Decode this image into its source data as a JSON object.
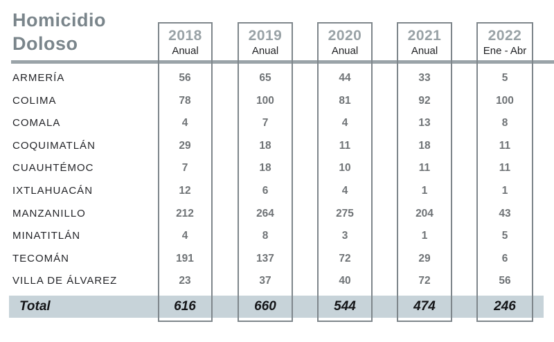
{
  "title": {
    "line1": "Homicidio",
    "line2": "Doloso"
  },
  "columns": [
    {
      "year": "2018",
      "period": "Anual"
    },
    {
      "year": "2019",
      "period": "Anual"
    },
    {
      "year": "2020",
      "period": "Anual"
    },
    {
      "year": "2021",
      "period": "Anual"
    },
    {
      "year": "2022",
      "period": "Ene - Abr"
    }
  ],
  "table": {
    "rows": [
      {
        "name": "ARMERÍA",
        "values": [
          56,
          65,
          44,
          33,
          5
        ]
      },
      {
        "name": "COLIMA",
        "values": [
          78,
          100,
          81,
          92,
          100
        ]
      },
      {
        "name": "COMALA",
        "values": [
          4,
          7,
          4,
          13,
          8
        ]
      },
      {
        "name": "COQUIMATLÁN",
        "values": [
          29,
          18,
          11,
          18,
          11
        ]
      },
      {
        "name": "CUAUHTÉMOC",
        "values": [
          7,
          18,
          10,
          11,
          11
        ]
      },
      {
        "name": "IXTLAHUACÁN",
        "values": [
          12,
          6,
          4,
          1,
          1
        ]
      },
      {
        "name": "MANZANILLO",
        "values": [
          212,
          264,
          275,
          204,
          43
        ]
      },
      {
        "name": "MINATITLÁN",
        "values": [
          4,
          8,
          3,
          1,
          5
        ]
      },
      {
        "name": "TECOMÁN",
        "values": [
          191,
          137,
          72,
          29,
          6
        ]
      },
      {
        "name": "VILLA DE ÁLVAREZ",
        "values": [
          23,
          37,
          40,
          72,
          56
        ]
      }
    ],
    "total": {
      "label": "Total",
      "values": [
        616,
        660,
        544,
        474,
        246
      ]
    }
  },
  "colors": {
    "title_gray": "#7a858b",
    "year_gray": "#99a2a6",
    "box_border": "#7e868b",
    "rule_gray": "#9aa3a8",
    "value_gray": "#6f7376",
    "name_dark": "#232428",
    "total_dark": "#141518",
    "total_band": "#c7d3d9"
  },
  "chart_data": {
    "type": "table",
    "title": "Homicidio Doloso",
    "categories": [
      "ARMERÍA",
      "COLIMA",
      "COMALA",
      "COQUIMATLÁN",
      "CUAUHTÉMOC",
      "IXTLAHUACÁN",
      "MANZANILLO",
      "MINATITLÁN",
      "TECOMÁN",
      "VILLA DE ÁLVAREZ"
    ],
    "series": [
      {
        "name": "2018 Anual",
        "values": [
          56,
          78,
          4,
          29,
          7,
          12,
          212,
          4,
          191,
          23
        ],
        "total": 616
      },
      {
        "name": "2019 Anual",
        "values": [
          65,
          100,
          7,
          18,
          18,
          6,
          264,
          8,
          137,
          37
        ],
        "total": 660
      },
      {
        "name": "2020 Anual",
        "values": [
          44,
          81,
          4,
          11,
          10,
          4,
          275,
          3,
          72,
          40
        ],
        "total": 544
      },
      {
        "name": "2021 Anual",
        "values": [
          33,
          92,
          13,
          18,
          11,
          1,
          204,
          1,
          29,
          72
        ],
        "total": 474
      },
      {
        "name": "2022 Ene - Abr",
        "values": [
          5,
          100,
          8,
          11,
          11,
          1,
          43,
          5,
          6,
          56
        ],
        "total": 246
      }
    ]
  }
}
